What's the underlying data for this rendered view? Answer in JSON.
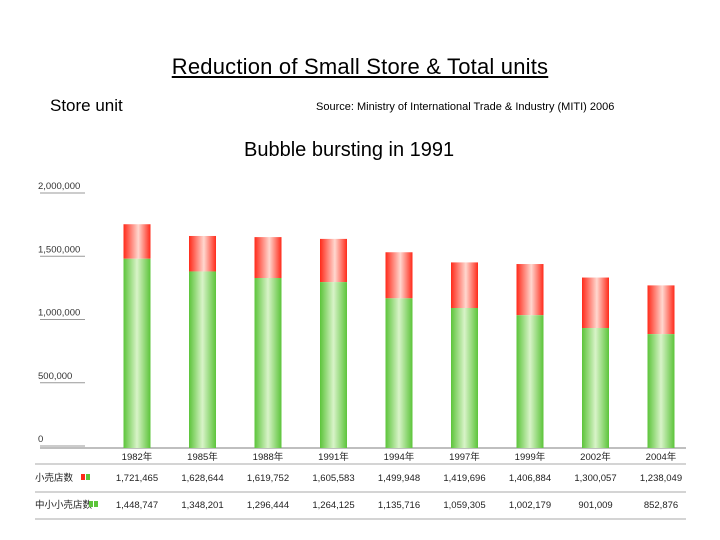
{
  "title": "Reduction of Small Store & Total units",
  "ylabel": "Store unit",
  "source": "Source: Ministry of International Trade & Industry (MITI) 2006",
  "annotation": "Bubble bursting in 1991",
  "colors": {
    "total_top": "#ff2a1a",
    "total_light": "#ffd7cf",
    "small_light": "#d8f3c8",
    "small_mid": "#8fdc6a",
    "small_dark": "#5cc43a",
    "axis": "#999999"
  },
  "chart_data": {
    "type": "bar",
    "categories": [
      "1982年",
      "1985年",
      "1988年",
      "1991年",
      "1994年",
      "1997年",
      "1999年",
      "2002年",
      "2004年"
    ],
    "ylim": [
      0,
      2000000
    ],
    "yticks": [
      0,
      500000,
      1000000,
      1500000,
      2000000
    ],
    "ytick_labels": [
      "0",
      "500,000",
      "1,000,000",
      "1,500,000",
      "2,000,000"
    ],
    "series": [
      {
        "name": "小売店数",
        "values": [
          1721465,
          1628644,
          1619752,
          1605583,
          1499948,
          1419696,
          1406884,
          1300057,
          1238049
        ],
        "labels": [
          "1,721,465",
          "1,628,644",
          "1,619,752",
          "1,605,583",
          "1,499,948",
          "1,419,696",
          "1,406,884",
          "1,300,057",
          "1,238,049"
        ]
      },
      {
        "name": "中小小売店数",
        "values": [
          1448747,
          1348201,
          1296444,
          1264125,
          1135716,
          1059305,
          1002179,
          901009,
          852876
        ],
        "labels": [
          "1,448,747",
          "1,348,201",
          "1,296,444",
          "1,264,125",
          "1,135,716",
          "1,059,305",
          "1,002,179",
          "901,009",
          "852,876"
        ]
      }
    ]
  }
}
